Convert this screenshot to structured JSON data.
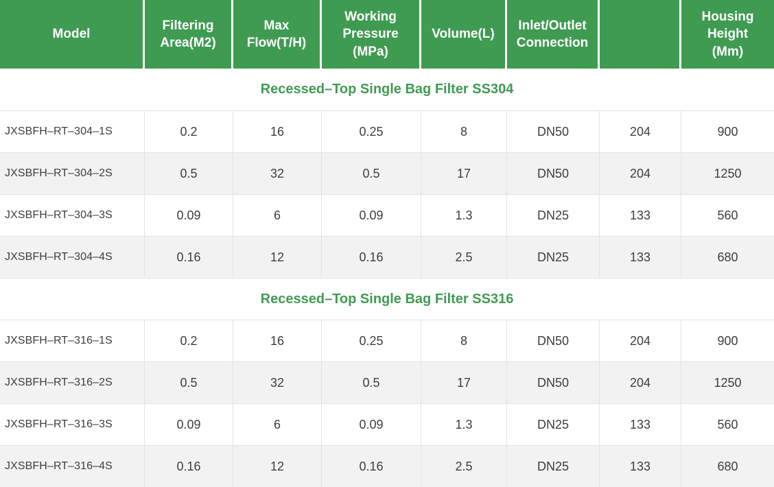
{
  "colors": {
    "header_green": "#3f9b51",
    "stripe": "#f2f2f2",
    "border": "#e3e3e3"
  },
  "table": {
    "columns": [
      {
        "label": "Model"
      },
      {
        "label": "Filtering\nArea(M2)"
      },
      {
        "label": "Max\nFlow(T/H)"
      },
      {
        "label": "Working\nPressure\n(MPa)"
      },
      {
        "label": "Volume(L)"
      },
      {
        "label": "Inlet/Outlet\nConnection"
      },
      {
        "label": ""
      },
      {
        "label": "Housing\nHeight\n(Mm)"
      }
    ],
    "sections": [
      {
        "title": "Recessed–Top Single Bag Filter SS304",
        "rows": [
          [
            "JXSBFH–RT–304–1S",
            "0.2",
            "16",
            "0.25",
            "8",
            "DN50",
            "204",
            "900"
          ],
          [
            "JXSBFH–RT–304–2S",
            "0.5",
            "32",
            "0.5",
            "17",
            "DN50",
            "204",
            "1250"
          ],
          [
            "JXSBFH–RT–304–3S",
            "0.09",
            "6",
            "0.09",
            "1.3",
            "DN25",
            "133",
            "560"
          ],
          [
            "JXSBFH–RT–304–4S",
            "0.16",
            "12",
            "0.16",
            "2.5",
            "DN25",
            "133",
            "680"
          ]
        ]
      },
      {
        "title": "Recessed–Top Single Bag Filter SS316",
        "rows": [
          [
            "JXSBFH–RT–316–1S",
            "0.2",
            "16",
            "0.25",
            "8",
            "DN50",
            "204",
            "900"
          ],
          [
            "JXSBFH–RT–316–2S",
            "0.5",
            "32",
            "0.5",
            "17",
            "DN50",
            "204",
            "1250"
          ],
          [
            "JXSBFH–RT–316–3S",
            "0.09",
            "6",
            "0.09",
            "1.3",
            "DN25",
            "133",
            "560"
          ],
          [
            "JXSBFH–RT–316–4S",
            "0.16",
            "12",
            "0.16",
            "2.5",
            "DN25",
            "133",
            "680"
          ]
        ]
      }
    ]
  }
}
